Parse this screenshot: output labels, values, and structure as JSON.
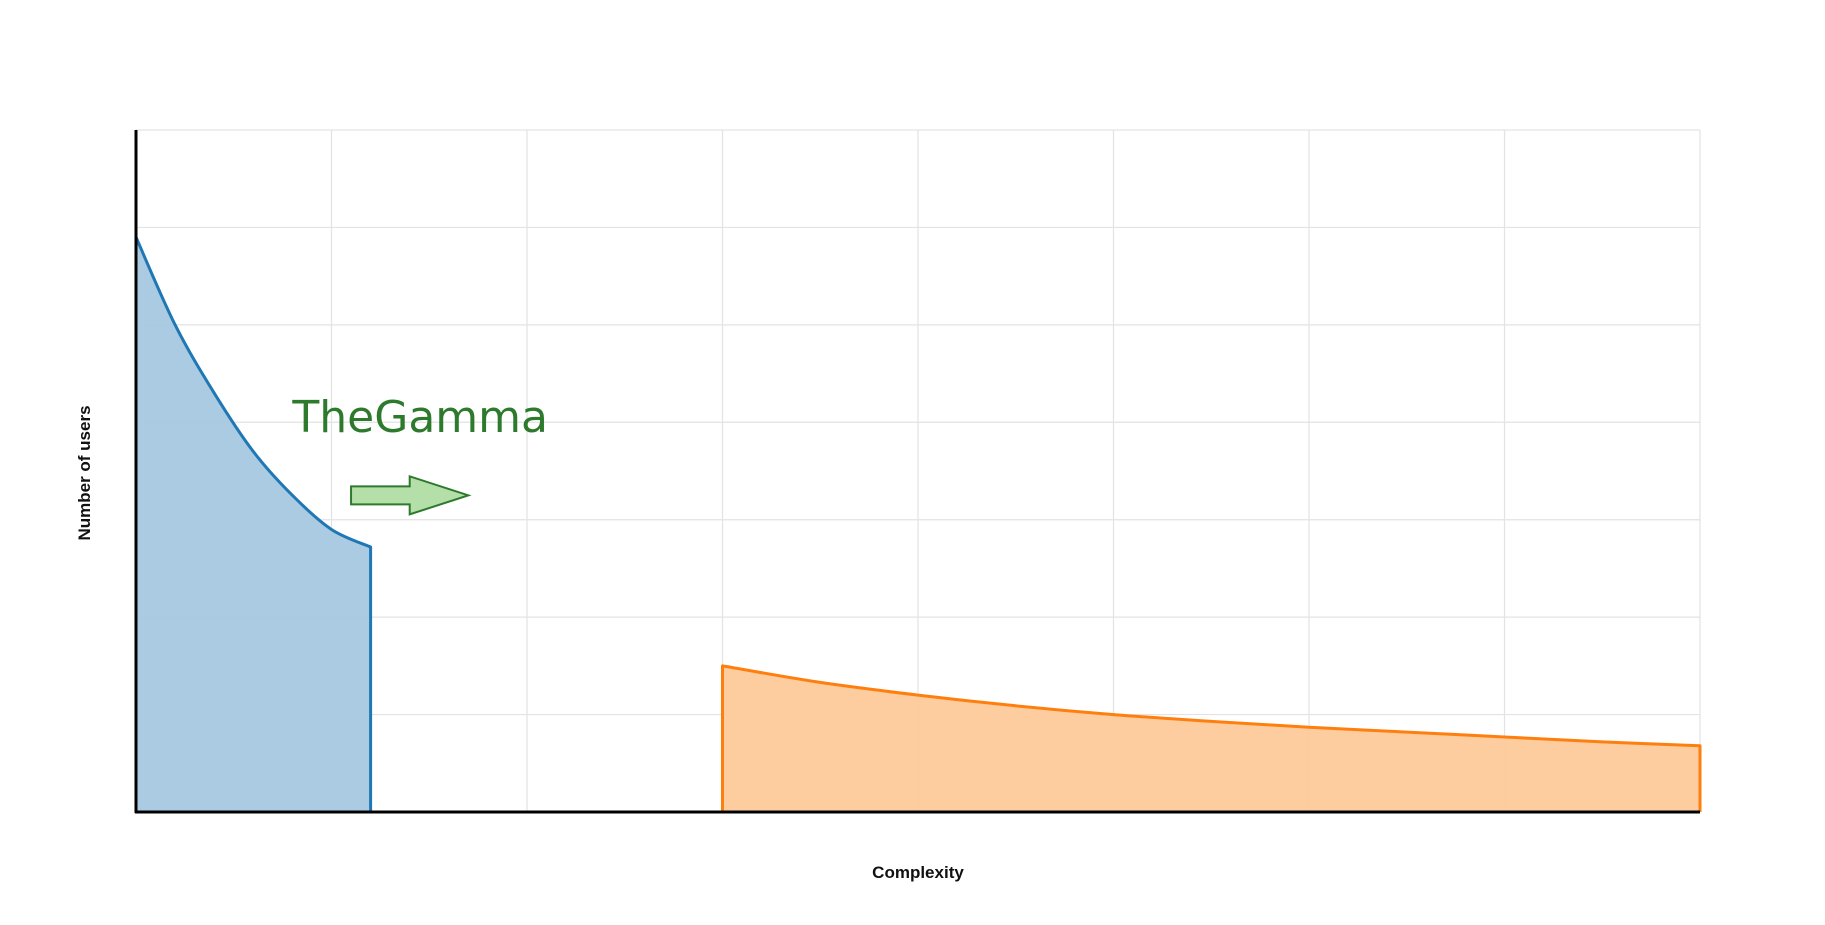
{
  "chart_data": {
    "type": "area",
    "title": "",
    "xlabel": "Complexity",
    "ylabel": "Number of users",
    "xlim": [
      0,
      8
    ],
    "ylim": [
      0,
      7
    ],
    "grid": true,
    "show_tick_labels": false,
    "series": [
      {
        "color": "#1f77b4",
        "fill": "#a6c8e2",
        "x": [
          0,
          0.2,
          0.4,
          0.6,
          0.8,
          1.0,
          1.2
        ],
        "values": [
          5.9,
          5.0,
          4.3,
          3.7,
          3.25,
          2.9,
          2.72
        ]
      },
      {
        "color": "#ff7f0e",
        "fill": "#fdca9a",
        "x": [
          3.0,
          3.5,
          4.0,
          4.5,
          5.0,
          5.5,
          6.0,
          6.5,
          7.0,
          7.5,
          8.0
        ],
        "values": [
          1.5,
          1.33,
          1.2,
          1.09,
          1.0,
          0.93,
          0.87,
          0.82,
          0.77,
          0.72,
          0.68
        ]
      }
    ],
    "annotations": [
      {
        "text": "TheGamma",
        "color": "#2d7a2d",
        "arrow_fill": "#b5dfa9",
        "arrow_stroke": "#2d7a2d",
        "arrow_x": [
          1.1,
          1.7
        ],
        "arrow_y": 3.25,
        "text_x": 0.8,
        "text_y": 3.9
      }
    ]
  }
}
